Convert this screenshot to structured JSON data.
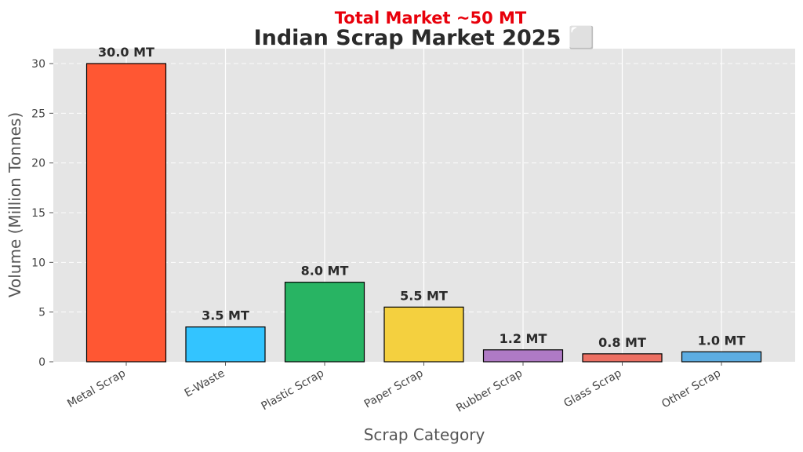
{
  "chart_data": {
    "type": "bar",
    "title": "Indian Scrap Market 2025 ⬜",
    "subtitle": "Total Market ~50 MT",
    "xlabel": "Scrap Category",
    "ylabel": "Volume (Million Tonnes)",
    "ylim": [
      0,
      31.5
    ],
    "yticks": [
      0,
      5,
      10,
      15,
      20,
      25,
      30
    ],
    "grid": true,
    "categories": [
      "Metal Scrap",
      "E-Waste",
      "Plastic Scrap",
      "Paper Scrap",
      "Rubber Scrap",
      "Glass Scrap",
      "Other Scrap"
    ],
    "values": [
      30.0,
      3.5,
      8.0,
      5.5,
      1.2,
      0.8,
      1.0
    ],
    "data_labels": [
      "30.0 MT",
      "3.5 MT",
      "8.0 MT",
      "5.5 MT",
      "1.2 MT",
      "0.8 MT",
      "1.0 MT"
    ],
    "colors": [
      "#ff5733",
      "#33c4ff",
      "#28b463",
      "#f4d03f",
      "#af7ac5",
      "#ec7063",
      "#5dade2"
    ],
    "plot_background": "#e5e5e5",
    "subtitle_color": "#e8000b"
  }
}
